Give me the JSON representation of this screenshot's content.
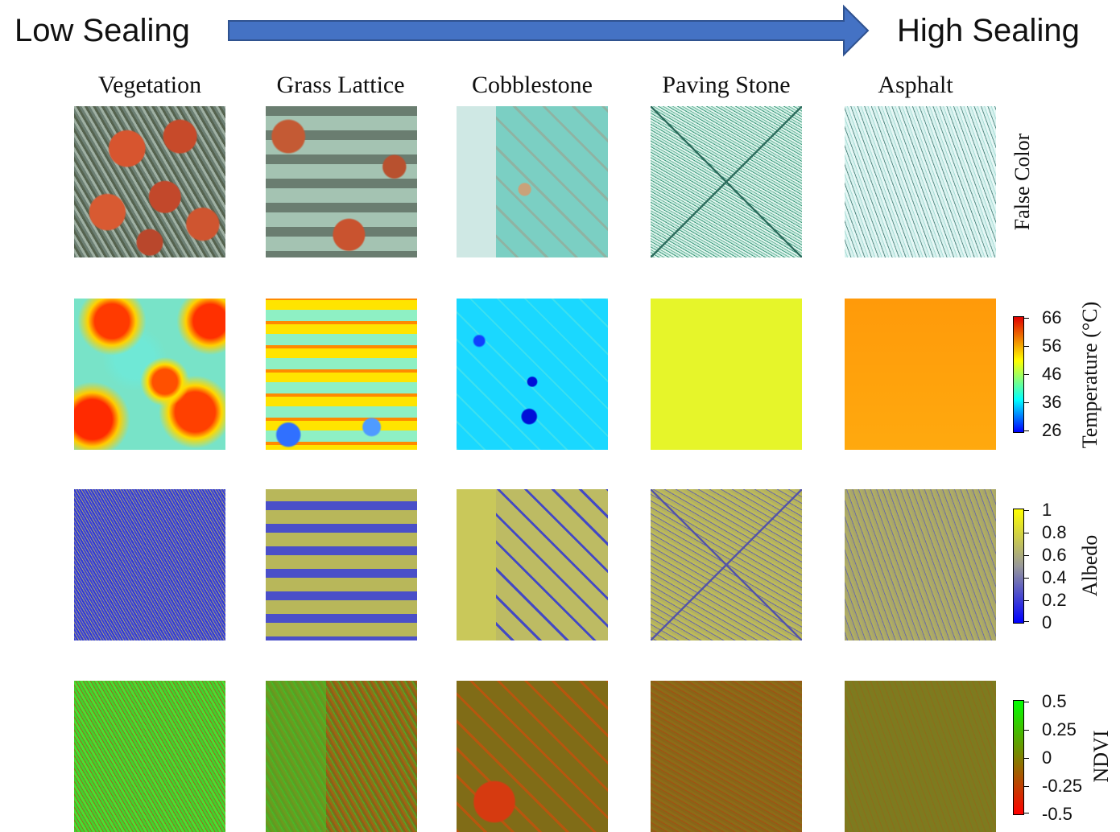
{
  "header": {
    "left_label": "Low Sealing",
    "right_label": "High Sealing",
    "arrow_fill": "#4472C4",
    "arrow_stroke": "#2F528F"
  },
  "columns": [
    {
      "title": "Vegetation"
    },
    {
      "title": "Grass Lattice"
    },
    {
      "title": "Cobblestone"
    },
    {
      "title": "Paving Stone"
    },
    {
      "title": "Asphalt"
    }
  ],
  "rows": {
    "false_color": {
      "label": "False Color"
    },
    "temperature": {
      "label": "Temperature (°C)",
      "ticks": [
        "66",
        "56",
        "46",
        "36",
        "26"
      ],
      "colors": [
        "#e00000",
        "#ffff00",
        "#00ffff",
        "#0000ff"
      ]
    },
    "albedo": {
      "label": "Albedo",
      "ticks": [
        "1",
        "0.8",
        "0.6",
        "0.4",
        "0.2",
        "0"
      ],
      "colors": [
        "#ffff00",
        "#999999",
        "#0000ff"
      ]
    },
    "ndvi": {
      "label": "NDVI",
      "ticks": [
        "0.5",
        "0.25",
        "0",
        "-0.25",
        "-0.5"
      ],
      "colors": [
        "#00ff00",
        "#ff0000"
      ]
    }
  }
}
